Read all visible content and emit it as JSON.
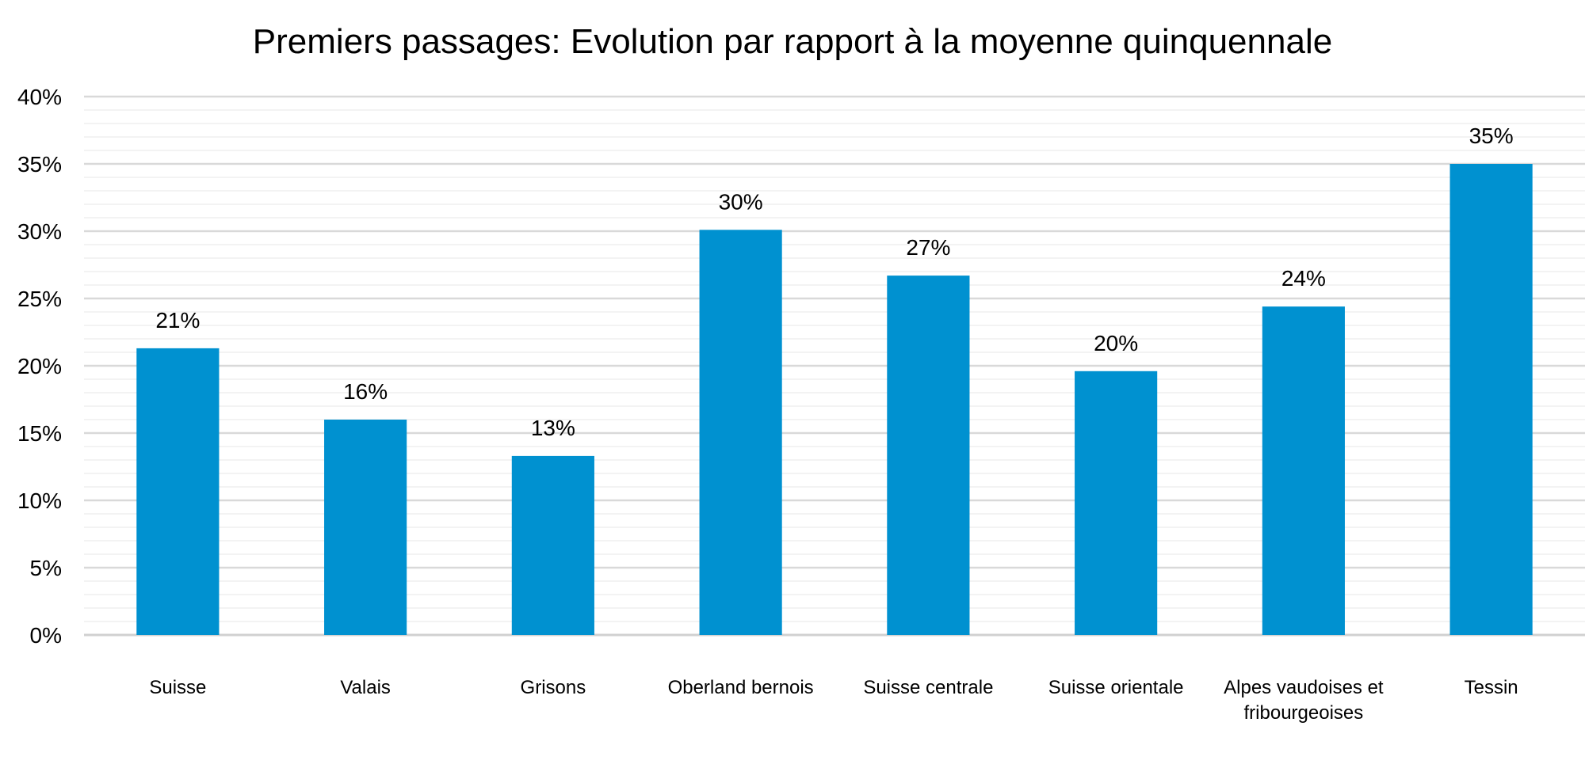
{
  "chart_data": {
    "type": "bar",
    "title": "Premiers passages: Evolution par rapport à la moyenne quinquennale",
    "categories": [
      [
        "Suisse"
      ],
      [
        "Valais"
      ],
      [
        "Grisons"
      ],
      [
        "Oberland bernois"
      ],
      [
        "Suisse centrale"
      ],
      [
        "Suisse orientale"
      ],
      [
        "Alpes vaudoises et",
        "fribourgeoises"
      ],
      [
        "Tessin"
      ]
    ],
    "values": [
      21.3,
      16.0,
      13.3,
      30.1,
      26.7,
      19.6,
      24.4,
      35.0
    ],
    "data_labels": [
      "21%",
      "16%",
      "13%",
      "30%",
      "27%",
      "20%",
      "24%",
      "35%"
    ],
    "y_ticks": [
      "0%",
      "5%",
      "10%",
      "15%",
      "20%",
      "25%",
      "30%",
      "35%",
      "40%"
    ],
    "ylim": [
      0,
      40
    ],
    "y_major_step": 5,
    "y_minor_step": 1,
    "xlabel": "",
    "ylabel": "",
    "grid": true,
    "legend": "none",
    "colors": {
      "bar": "#0091d0",
      "grid_major": "#d9d9d9",
      "grid_minor": "#efefef"
    }
  }
}
